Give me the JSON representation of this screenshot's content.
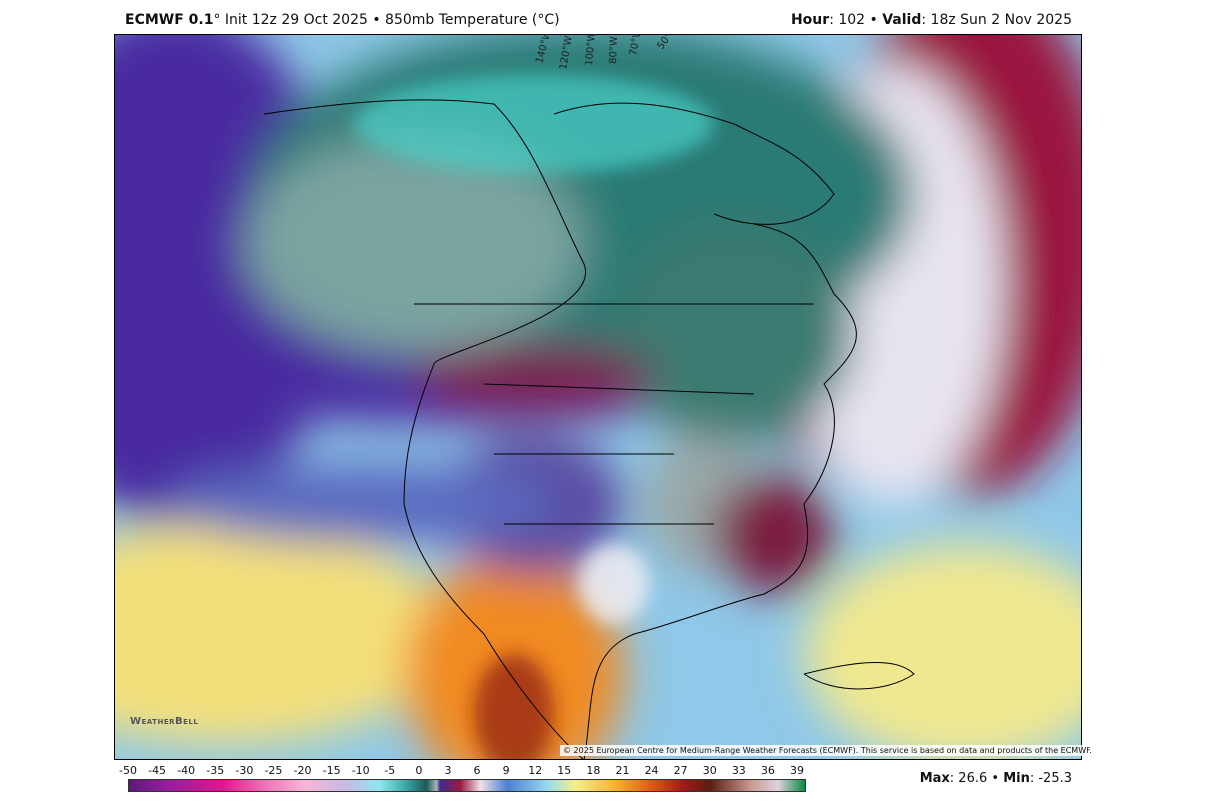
{
  "header": {
    "model": "ECMWF 0.1",
    "init": "° Init 12z 29 Oct 2025 • 850mb Temperature (°C)",
    "hour_label": "Hour",
    "hour": ": 102 • ",
    "valid_label": "Valid",
    "valid": ": 18z Sun 2 Nov 2025"
  },
  "map": {
    "longitude_labels": [
      "140°W",
      "120°W",
      "100°W",
      "80°W",
      "70°W",
      "50°W"
    ],
    "logo": "WeatherBell",
    "copyright": "© 2025 European Centre for Medium-Range Weather Forecasts (ECMWF). This service is based on data and products of the ECMWF."
  },
  "colorbar": {
    "ticks": [
      -50,
      -45,
      -40,
      -35,
      -30,
      -25,
      -20,
      -15,
      -10,
      -5,
      0,
      3,
      6,
      9,
      12,
      15,
      18,
      21,
      24,
      27,
      30,
      33,
      36,
      39
    ]
  },
  "stats": {
    "max_label": "Max",
    "max": ": 26.6 • ",
    "min_label": "Min",
    "min": ": -25.3"
  }
}
